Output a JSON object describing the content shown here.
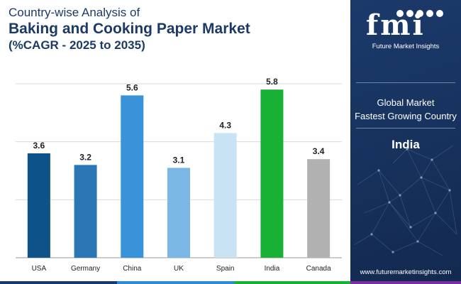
{
  "header": {
    "line1": "Country-wise Analysis of",
    "line2": "Baking and Cooking Paper Market",
    "line3": "(%CAGR - 2025 to 2035)"
  },
  "chart_data": {
    "type": "bar",
    "categories": [
      "USA",
      "Germany",
      "China",
      "UK",
      "Spain",
      "India",
      "Canada"
    ],
    "values": [
      3.6,
      3.2,
      5.6,
      3.1,
      4.3,
      5.8,
      3.4
    ],
    "colors": [
      "#0d5289",
      "#2b77b5",
      "#3a93d8",
      "#7ab7e4",
      "#c8e3f4",
      "#18b035",
      "#b1b1b1"
    ],
    "ylim": [
      0,
      6
    ],
    "gridlines": [
      0,
      2,
      4,
      6
    ],
    "grid": true,
    "title": "",
    "xlabel": "",
    "ylabel": ""
  },
  "panel": {
    "logo_text": "fmi",
    "logo_sub": "Future Market Insights",
    "label1": "Global Market",
    "label2": "Fastest Growing Country",
    "country": "India",
    "url": "www.futuremarketinsights.com"
  },
  "colors": {
    "title": "#1c3a66",
    "panel_bg": "#1b3a6b",
    "footer": [
      "#1b3a6b",
      "#2f8ad0",
      "#18b035",
      "#7a2fa0"
    ]
  }
}
